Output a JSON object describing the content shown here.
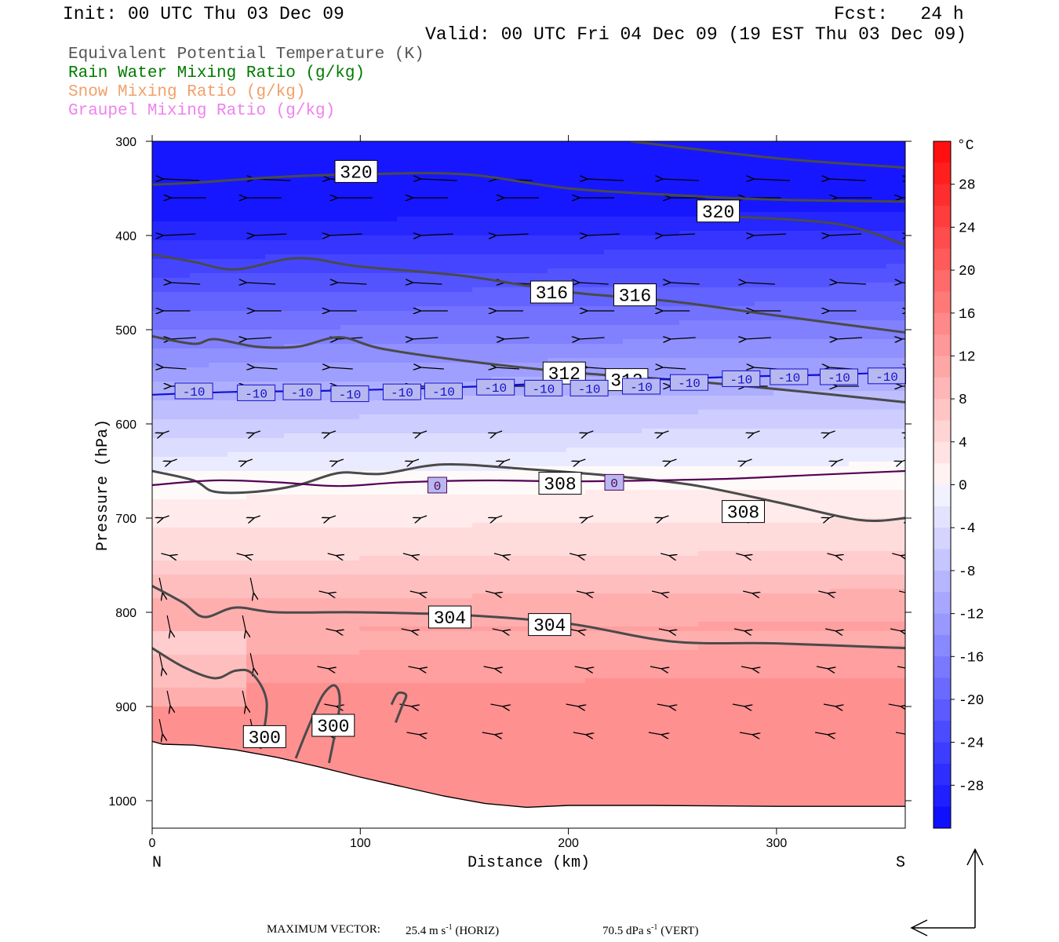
{
  "header": {
    "init": "Init: 00 UTC Thu 03 Dec 09",
    "fcst": "Fcst:   24 h",
    "valid": "Valid: 00 UTC Fri 04 Dec 09 (19 EST Thu 03 Dec 09)"
  },
  "legend": [
    {
      "text": "Equivalent Potential Temperature (K)",
      "color": "#555555"
    },
    {
      "text": "Rain Water Mixing Ratio (g/kg)",
      "color": "#007a00"
    },
    {
      "text": "Snow Mixing Ratio (g/kg)",
      "color": "#f2a06a"
    },
    {
      "text": "Graupel Mixing Ratio (g/kg)",
      "color": "#ee82ee"
    }
  ],
  "footer": {
    "label": "MAXIMUM VECTOR:",
    "horiz_value": "25.4 m s",
    "horiz_unit": "(HORIZ)",
    "vert_value": "70.5 dPa s",
    "vert_unit": "(VERT)",
    "exponent": "-1"
  },
  "chart_data": {
    "type": "cross-section contour",
    "ylabel": "Pressure (hPa)",
    "xlabel": "Distance (km)",
    "x_ticks": [
      0,
      100,
      200,
      300
    ],
    "y_ticks": [
      300,
      400,
      500,
      600,
      700,
      800,
      900,
      1000
    ],
    "xlim": [
      0,
      362
    ],
    "ylim": [
      300,
      1030
    ],
    "y_scale": "pressure (inverted)",
    "endpoints": {
      "left": "N",
      "right": "S"
    },
    "colorbar": {
      "unit": "°C",
      "tick_labels": [
        "28",
        "24",
        "20",
        "16",
        "12",
        "8",
        "4",
        "0",
        "-4",
        "-8",
        "-12",
        "-16",
        "-20",
        "-24",
        "-28"
      ],
      "range": [
        -32,
        32
      ],
      "step": 2
    },
    "temperature_contours": [
      {
        "label": "0",
        "color": "#550055",
        "points": [
          [
            0,
            665
          ],
          [
            30,
            660
          ],
          [
            60,
            662
          ],
          [
            90,
            666
          ],
          [
            120,
            662
          ],
          [
            160,
            660
          ],
          [
            200,
            661
          ],
          [
            240,
            660
          ],
          [
            280,
            658
          ],
          [
            320,
            654
          ],
          [
            362,
            650
          ]
        ],
        "label_at": [
          [
            137,
            665
          ],
          [
            222,
            662
          ]
        ]
      },
      {
        "label": "-10",
        "color": "#1010d0",
        "points": [
          [
            0,
            569
          ],
          [
            40,
            566
          ],
          [
            80,
            565
          ],
          [
            120,
            563
          ],
          [
            160,
            560
          ],
          [
            200,
            556
          ],
          [
            240,
            553
          ],
          [
            280,
            550
          ],
          [
            320,
            548
          ],
          [
            362,
            545
          ]
        ],
        "label_at": [
          [
            20,
            565
          ],
          [
            50,
            567
          ],
          [
            72,
            566
          ],
          [
            95,
            568
          ],
          [
            120,
            566
          ],
          [
            140,
            565
          ],
          [
            165,
            561
          ],
          [
            188,
            562
          ],
          [
            210,
            562
          ],
          [
            235,
            560
          ],
          [
            258,
            556
          ],
          [
            283,
            552
          ],
          [
            306,
            550
          ],
          [
            330,
            550
          ],
          [
            353,
            549
          ]
        ]
      }
    ],
    "theta_e_contours": [
      {
        "label": "320",
        "points": [
          [
            0,
            346
          ],
          [
            20,
            344
          ],
          [
            60,
            338
          ],
          [
            100,
            335
          ],
          [
            150,
            335
          ],
          [
            200,
            350
          ],
          [
            250,
            357
          ],
          [
            300,
            362
          ],
          [
            362,
            364
          ]
        ],
        "label_at": [
          [
            98,
            332
          ],
          [
            272,
            374
          ]
        ]
      },
      {
        "label": "320",
        "points": [
          [
            230,
            300
          ],
          [
            300,
            318
          ],
          [
            362,
            328
          ]
        ]
      },
      {
        "label": "320",
        "points": [
          [
            280,
            380
          ],
          [
            330,
            388
          ],
          [
            362,
            410
          ]
        ]
      },
      {
        "label": "316",
        "points": [
          [
            0,
            420
          ],
          [
            20,
            428
          ],
          [
            40,
            436
          ],
          [
            70,
            424
          ],
          [
            100,
            433
          ],
          [
            150,
            443
          ],
          [
            200,
            460
          ],
          [
            250,
            470
          ],
          [
            300,
            485
          ],
          [
            362,
            503
          ]
        ],
        "label_at": [
          [
            192,
            460
          ],
          [
            232,
            463
          ]
        ]
      },
      {
        "label": "312",
        "points": [
          [
            0,
            507
          ],
          [
            20,
            515
          ],
          [
            30,
            510
          ],
          [
            50,
            518
          ],
          [
            70,
            518
          ],
          [
            90,
            508
          ],
          [
            110,
            520
          ],
          [
            150,
            533
          ],
          [
            200,
            545
          ],
          [
            250,
            553
          ],
          [
            300,
            563
          ],
          [
            362,
            577
          ]
        ],
        "label_at": [
          [
            198,
            546
          ],
          [
            228,
            553
          ]
        ]
      },
      {
        "label": "308",
        "points": [
          [
            0,
            650
          ],
          [
            20,
            660
          ],
          [
            30,
            672
          ],
          [
            50,
            672
          ],
          [
            70,
            665
          ],
          [
            90,
            652
          ],
          [
            110,
            653
          ],
          [
            140,
            643
          ],
          [
            180,
            648
          ],
          [
            220,
            655
          ],
          [
            260,
            665
          ],
          [
            300,
            683
          ],
          [
            340,
            702
          ],
          [
            362,
            700
          ]
        ],
        "label_at": [
          [
            196,
            663
          ],
          [
            284,
            693
          ]
        ]
      },
      {
        "label": "304",
        "points": [
          [
            0,
            772
          ],
          [
            15,
            790
          ],
          [
            25,
            805
          ],
          [
            40,
            795
          ],
          [
            60,
            800
          ],
          [
            100,
            800
          ],
          [
            150,
            803
          ],
          [
            200,
            812
          ],
          [
            250,
            831
          ],
          [
            300,
            833
          ],
          [
            362,
            838
          ]
        ],
        "label_at": [
          [
            143,
            805
          ],
          [
            191,
            813
          ]
        ]
      },
      {
        "label": "300",
        "points": [
          [
            0,
            838
          ],
          [
            15,
            858
          ],
          [
            30,
            870
          ],
          [
            40,
            862
          ],
          [
            48,
            865
          ],
          [
            55,
            895
          ],
          [
            52,
            945
          ]
        ],
        "label_at": [
          [
            54,
            932
          ]
        ]
      },
      {
        "label": "300",
        "points": [
          [
            69,
            955
          ],
          [
            75,
            922
          ],
          [
            82,
            888
          ],
          [
            88,
            878
          ],
          [
            90,
            900
          ],
          [
            85,
            960
          ]
        ],
        "label_at": [
          [
            87,
            920
          ]
        ]
      },
      {
        "label": "300",
        "points": [
          [
            115,
            898
          ],
          [
            118,
            886
          ],
          [
            122,
            888
          ],
          [
            120,
            900
          ],
          [
            117,
            917
          ]
        ]
      }
    ],
    "terrain_boundary_hpa": [
      [
        0,
        937
      ],
      [
        5,
        940
      ],
      [
        20,
        941
      ],
      [
        40,
        946
      ],
      [
        60,
        954
      ],
      [
        80,
        964
      ],
      [
        100,
        975
      ],
      [
        120,
        985
      ],
      [
        140,
        995
      ],
      [
        160,
        1003
      ],
      [
        180,
        1007
      ],
      [
        200,
        1005
      ],
      [
        240,
        1005
      ],
      [
        300,
        1006
      ],
      [
        362,
        1006
      ]
    ]
  }
}
